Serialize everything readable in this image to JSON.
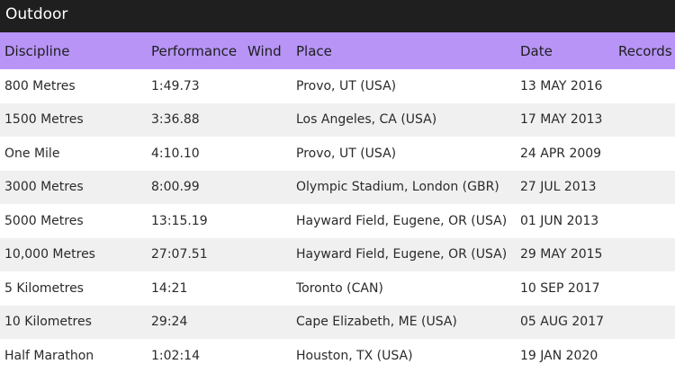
{
  "header": {
    "title": "Outdoor"
  },
  "table": {
    "columns": [
      "Discipline",
      "Performance",
      "Wind",
      "Place",
      "Date",
      "Records"
    ],
    "rows": [
      [
        "800 Metres",
        "1:49.73",
        "",
        "Provo, UT (USA)",
        "13 MAY 2016",
        ""
      ],
      [
        "1500 Metres",
        "3:36.88",
        "",
        "Los Angeles, CA (USA)",
        "17 MAY 2013",
        ""
      ],
      [
        "One Mile",
        "4:10.10",
        "",
        "Provo, UT (USA)",
        "24 APR 2009",
        ""
      ],
      [
        "3000 Metres",
        "8:00.99",
        "",
        "Olympic Stadium, London (GBR)",
        "27 JUL 2013",
        ""
      ],
      [
        "5000 Metres",
        "13:15.19",
        "",
        "Hayward Field, Eugene, OR (USA)",
        "01 JUN 2013",
        ""
      ],
      [
        "10,000 Metres",
        "27:07.51",
        "",
        "Hayward Field, Eugene, OR (USA)",
        "29 MAY 2015",
        ""
      ],
      [
        "5 Kilometres",
        "14:21",
        "",
        "Toronto (CAN)",
        "10 SEP 2017",
        ""
      ],
      [
        "10 Kilometres",
        "29:24",
        "",
        "Cape Elizabeth, ME (USA)",
        "05 AUG 2017",
        ""
      ],
      [
        "Half Marathon",
        "1:02:14",
        "",
        "Houston, TX (USA)",
        "19 JAN 2020",
        ""
      ]
    ]
  },
  "colors": {
    "topbar_bg": "#1f1f1f",
    "header_bg": "#b794f6",
    "row_alt_bg": "#f0f0f0"
  }
}
